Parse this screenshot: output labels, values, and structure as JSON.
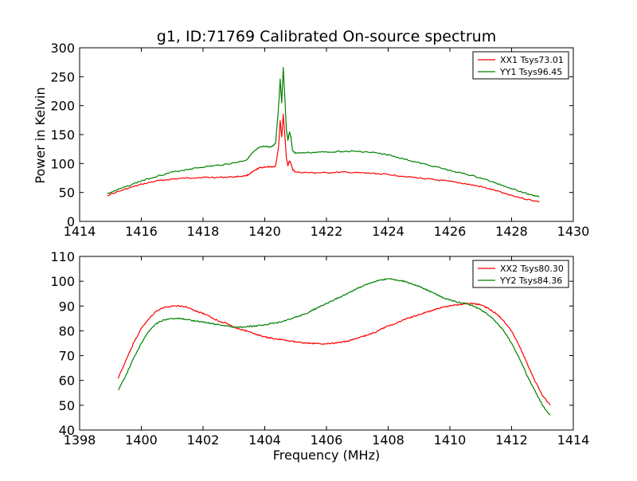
{
  "figure": {
    "title": "g1, ID:71769 Calibrated On-source spectrum",
    "xlabel": "Frequency (MHz)",
    "ylabel": "Power in Kelvin"
  },
  "chart_data": [
    {
      "type": "line",
      "title": "g1, ID:71769 Calibrated On-source spectrum",
      "xlabel": "",
      "ylabel": "Power in Kelvin",
      "xlim": [
        1414,
        1430
      ],
      "ylim": [
        0,
        300
      ],
      "xticks": [
        1414,
        1416,
        1418,
        1420,
        1422,
        1424,
        1426,
        1428,
        1430
      ],
      "yticks": [
        0,
        50,
        100,
        150,
        200,
        250,
        300
      ],
      "legend_position": "top-right",
      "grid": false,
      "series": [
        {
          "name": "XX1 Tsys73.01",
          "color": "#ff0000",
          "x": [
            1414.9,
            1415.5,
            1416.0,
            1416.5,
            1417.0,
            1417.5,
            1418.0,
            1418.5,
            1419.0,
            1419.4,
            1419.6,
            1419.8,
            1420.0,
            1420.2,
            1420.35,
            1420.45,
            1420.5,
            1420.55,
            1420.6,
            1420.65,
            1420.7,
            1420.75,
            1420.8,
            1420.85,
            1420.9,
            1421.0,
            1421.5,
            1422.0,
            1422.5,
            1423.0,
            1423.5,
            1424.0,
            1424.5,
            1425.0,
            1425.5,
            1426.0,
            1426.5,
            1427.0,
            1427.5,
            1428.0,
            1428.5,
            1428.9
          ],
          "values": [
            45,
            56,
            64,
            70,
            73,
            75,
            76,
            76,
            77,
            79,
            85,
            92,
            94,
            94,
            95,
            130,
            175,
            145,
            185,
            150,
            110,
            96,
            105,
            100,
            90,
            85,
            84,
            84,
            85,
            84,
            83,
            81,
            78,
            75,
            72,
            69,
            65,
            60,
            53,
            45,
            38,
            34
          ]
        },
        {
          "name": "YY1 Tsys96.45",
          "color": "#008000",
          "x": [
            1414.9,
            1415.5,
            1416.0,
            1416.5,
            1417.0,
            1417.5,
            1418.0,
            1418.5,
            1419.0,
            1419.4,
            1419.6,
            1419.8,
            1420.0,
            1420.2,
            1420.35,
            1420.45,
            1420.5,
            1420.55,
            1420.6,
            1420.65,
            1420.7,
            1420.75,
            1420.8,
            1420.85,
            1420.9,
            1421.0,
            1421.5,
            1422.0,
            1422.5,
            1423.0,
            1423.5,
            1424.0,
            1424.5,
            1425.0,
            1425.5,
            1426.0,
            1426.5,
            1427.0,
            1427.5,
            1428.0,
            1428.5,
            1428.9
          ],
          "values": [
            48,
            60,
            70,
            78,
            85,
            90,
            94,
            97,
            101,
            106,
            118,
            127,
            130,
            128,
            135,
            200,
            245,
            205,
            265,
            215,
            160,
            140,
            155,
            145,
            122,
            118,
            119,
            120,
            121,
            121,
            119,
            115,
            108,
            101,
            95,
            88,
            82,
            75,
            66,
            57,
            48,
            42
          ]
        }
      ]
    },
    {
      "type": "line",
      "title": "",
      "xlabel": "Frequency (MHz)",
      "ylabel": "",
      "xlim": [
        1398,
        1414
      ],
      "ylim": [
        40,
        110
      ],
      "xticks": [
        1398,
        1400,
        1402,
        1404,
        1406,
        1408,
        1410,
        1412,
        1414
      ],
      "yticks": [
        40,
        50,
        60,
        70,
        80,
        90,
        100,
        110
      ],
      "legend_position": "top-right",
      "grid": false,
      "series": [
        {
          "name": "XX2 Tsys80.30",
          "color": "#ff0000",
          "x": [
            1399.25,
            1399.5,
            1399.75,
            1400.0,
            1400.25,
            1400.5,
            1400.75,
            1401.0,
            1401.25,
            1401.5,
            1401.75,
            1402.0,
            1402.25,
            1402.5,
            1402.75,
            1403.0,
            1403.25,
            1403.5,
            1403.75,
            1404.0,
            1404.25,
            1404.5,
            1404.75,
            1405.0,
            1405.25,
            1405.5,
            1405.75,
            1406.0,
            1406.25,
            1406.5,
            1406.75,
            1407.0,
            1407.25,
            1407.5,
            1407.75,
            1408.0,
            1408.25,
            1408.5,
            1408.75,
            1409.0,
            1409.25,
            1409.5,
            1409.75,
            1410.0,
            1410.25,
            1410.5,
            1410.75,
            1411.0,
            1411.25,
            1411.5,
            1411.75,
            1412.0,
            1412.25,
            1412.5,
            1412.75,
            1413.0,
            1413.25
          ],
          "values": [
            61,
            68,
            75,
            81,
            85,
            88,
            89.5,
            90,
            90,
            89.5,
            88,
            87,
            85.5,
            84,
            83,
            81.5,
            80.5,
            79.5,
            78.5,
            77.5,
            77,
            76.5,
            76,
            75.5,
            75.2,
            75,
            74.8,
            74.8,
            75,
            75.5,
            76,
            77,
            78,
            79,
            80.5,
            82,
            83,
            84.5,
            85.5,
            86.5,
            87.5,
            88.5,
            89.5,
            90,
            90.5,
            91,
            91,
            90.5,
            89,
            87,
            84,
            80,
            74,
            67,
            60,
            54,
            50
          ]
        },
        {
          "name": "YY2 Tsys84.36",
          "color": "#008000",
          "x": [
            1399.25,
            1399.5,
            1399.75,
            1400.0,
            1400.25,
            1400.5,
            1400.75,
            1401.0,
            1401.25,
            1401.5,
            1401.75,
            1402.0,
            1402.25,
            1402.5,
            1402.75,
            1403.0,
            1403.25,
            1403.5,
            1403.75,
            1404.0,
            1404.25,
            1404.5,
            1404.75,
            1405.0,
            1405.25,
            1405.5,
            1405.75,
            1406.0,
            1406.25,
            1406.5,
            1406.75,
            1407.0,
            1407.25,
            1407.5,
            1407.75,
            1408.0,
            1408.25,
            1408.5,
            1408.75,
            1409.0,
            1409.25,
            1409.5,
            1409.75,
            1410.0,
            1410.25,
            1410.5,
            1410.75,
            1411.0,
            1411.25,
            1411.5,
            1411.75,
            1412.0,
            1412.25,
            1412.5,
            1412.75,
            1413.0,
            1413.25
          ],
          "values": [
            56,
            62,
            69,
            75,
            80,
            83,
            84.5,
            85,
            85,
            84.5,
            84,
            83.5,
            83,
            82.5,
            82,
            81.5,
            81.5,
            81.8,
            82,
            82.5,
            83,
            83.5,
            84.5,
            85.5,
            86.5,
            88,
            89.5,
            91,
            92.5,
            94,
            95.5,
            97,
            98.5,
            99.5,
            100.5,
            101,
            100.5,
            100,
            99,
            98,
            96.5,
            95,
            93.5,
            92.5,
            91.5,
            91,
            90,
            88.5,
            86.5,
            83.5,
            80,
            75,
            69,
            62,
            56,
            50,
            46
          ]
        }
      ]
    }
  ]
}
